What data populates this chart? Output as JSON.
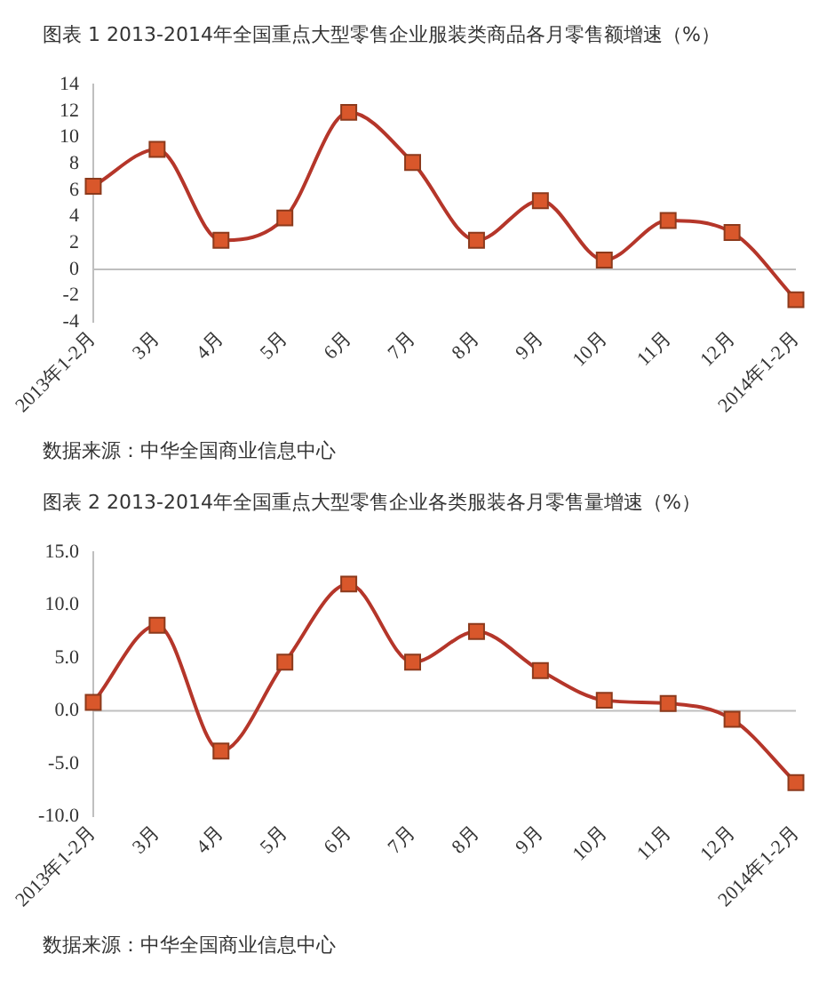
{
  "chart_data": [
    {
      "type": "line",
      "title": "图表 1 2013-2014年全国重点大型零售企业服装类商品各月零售额增速（%）",
      "categories": [
        "2013年1-2月",
        "3月",
        "4月",
        "5月",
        "6月",
        "7月",
        "8月",
        "9月",
        "10月",
        "11月",
        "12月",
        "2014年1-2月"
      ],
      "series": [
        {
          "color": "#d9572b",
          "values": [
            6.3,
            9.1,
            2.2,
            3.9,
            11.9,
            8.1,
            2.2,
            5.2,
            0.7,
            3.7,
            2.8,
            -2.3
          ]
        }
      ],
      "ylim": [
        -4,
        14
      ],
      "yticks": [
        -4,
        -2,
        0,
        2,
        4,
        6,
        8,
        10,
        12,
        14
      ],
      "grid": false,
      "legend": false,
      "marker": "square",
      "line_style": "solid",
      "ref_lines": [
        {
          "axis": "y",
          "value": 0,
          "color": "#bfbfbf"
        }
      ],
      "annotations": [
        "数据来源：中华全国商业信息中心"
      ]
    },
    {
      "type": "line",
      "title": "图表 2 2013-2014年全国重点大型零售企业各类服装各月零售量增速（%）",
      "categories": [
        "2013年1-2月",
        "3月",
        "4月",
        "5月",
        "6月",
        "7月",
        "8月",
        "9月",
        "10月",
        "11月",
        "12月",
        "2014年1-2月"
      ],
      "series": [
        {
          "color": "#d9572b",
          "values": [
            0.8,
            8.1,
            -3.8,
            4.6,
            12.0,
            4.6,
            7.5,
            3.8,
            1.0,
            0.7,
            -0.8,
            -6.8
          ]
        }
      ],
      "ylim": [
        -10,
        15
      ],
      "yticks": [
        {
          "value": -10,
          "label": "-10.0"
        },
        {
          "value": -5,
          "label": "-5.0"
        },
        {
          "value": 0,
          "label": "0.0"
        },
        {
          "value": 5,
          "label": "5.0"
        },
        {
          "value": 10,
          "label": "10.0"
        },
        {
          "value": 15,
          "label": "15.0"
        }
      ],
      "grid": false,
      "legend": false,
      "marker": "square",
      "line_style": "solid",
      "ref_lines": [
        {
          "axis": "y",
          "value": 0,
          "color": "#bfbfbf"
        }
      ],
      "annotations": [
        "数据来源：中华全国商业信息中心"
      ]
    }
  ]
}
